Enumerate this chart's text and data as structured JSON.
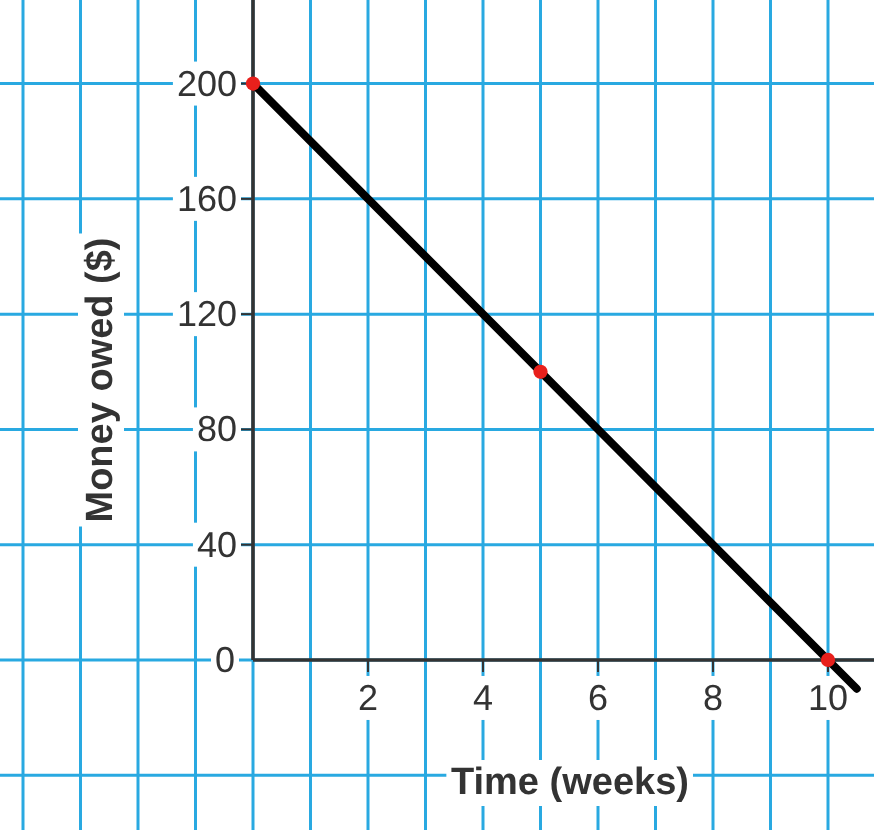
{
  "chart_data": {
    "type": "line",
    "xlabel": "Time (weeks)",
    "ylabel": "Money owed ($)",
    "xlim": [
      -4.4,
      10.8
    ],
    "ylim": [
      -59,
      229
    ],
    "xticks": [
      {
        "value": 1,
        "label": null
      },
      2,
      {
        "value": 3,
        "label": null
      },
      4,
      {
        "value": 5,
        "label": null
      },
      6,
      {
        "value": 7,
        "label": null
      },
      8,
      {
        "value": 9,
        "label": null
      },
      10
    ],
    "yticks": [
      {
        "value": 0,
        "label": "0"
      },
      40,
      80,
      120,
      160,
      200
    ],
    "grid": true,
    "series": [
      {
        "color": "#000000",
        "x": [
          0,
          10.5
        ],
        "values": [
          200,
          -10
        ],
        "marker": "none"
      },
      {
        "type": "scatter",
        "color": "#e8201c",
        "x": [
          0,
          5,
          10
        ],
        "values": [
          200,
          100,
          0
        ],
        "marker": "circle"
      }
    ]
  }
}
